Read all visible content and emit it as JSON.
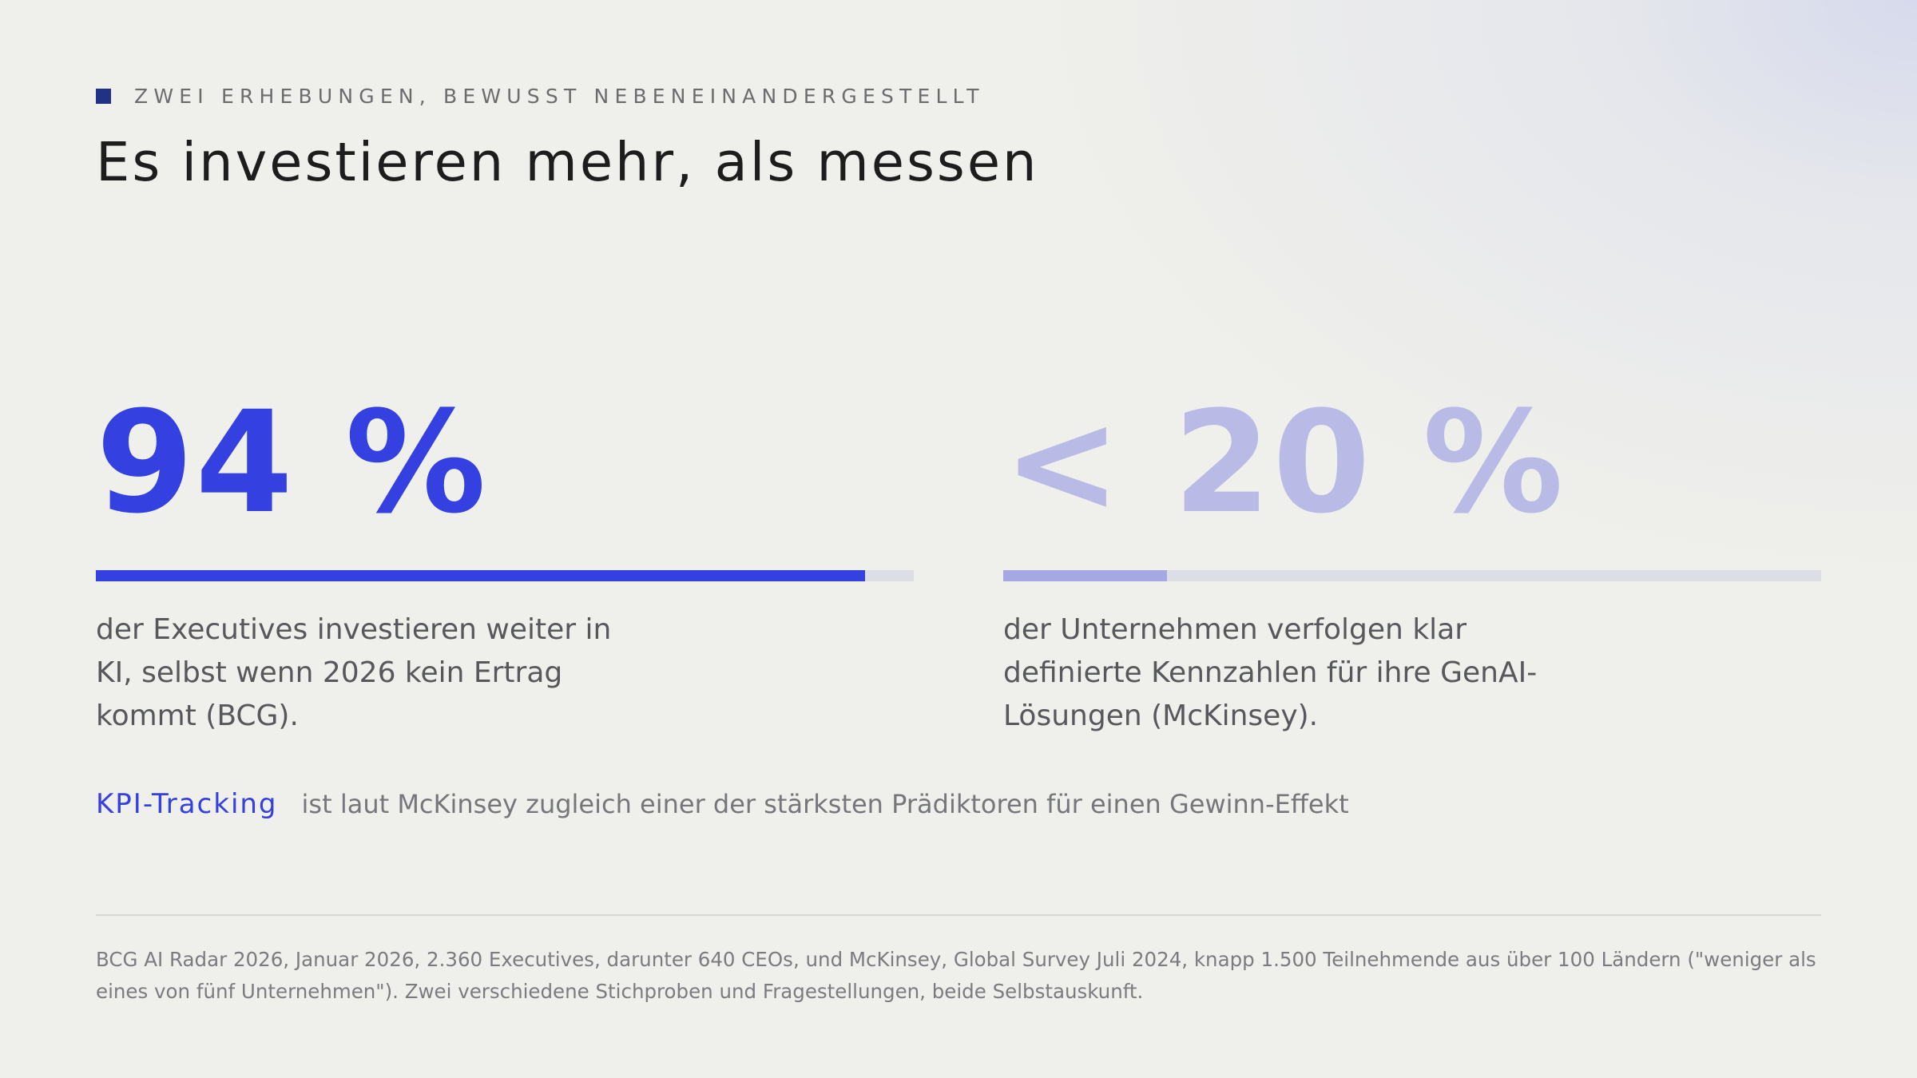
{
  "eyebrow": "ZWEI ERHEBUNGEN, BEWUSST NEBENEINANDERGESTELLT",
  "title": "Es investieren mehr, als messen",
  "stats": [
    {
      "value": "94 %",
      "level_percent": 94,
      "description": "der Executives investieren weiter in KI, selbst wenn 2026 kein Ertrag kommt (BCG).",
      "color": "#3540e0"
    },
    {
      "value": "< 20 %",
      "level_percent": 20,
      "description": "der Unternehmen verfolgen klar definierte Kennzahlen für ihre GenAI-Lösungen (McKinsey).",
      "color": "#a5a8e2"
    }
  ],
  "kpi": {
    "label": "KPI-Tracking",
    "text": "ist laut McKinsey zugleich einer der stärksten Prädiktoren für einen Gewinn-Effekt"
  },
  "footnote": "BCG AI Radar 2026, Januar 2026, 2.360 Executives, darunter 640 CEOs, und McKinsey, Global Survey Juli 2024, knapp 1.500 Teilnehmende aus über 100 Ländern (\"weniger als eines von fünf Unternehmen\"). Zwei verschiedene Stichproben und Fragestellungen, beide Selbstauskunft.",
  "colors": {
    "accent": "#3540e0",
    "accent_light": "#b9bbe6",
    "eyebrow_square": "#223085",
    "bar_track": "#dddde6"
  }
}
